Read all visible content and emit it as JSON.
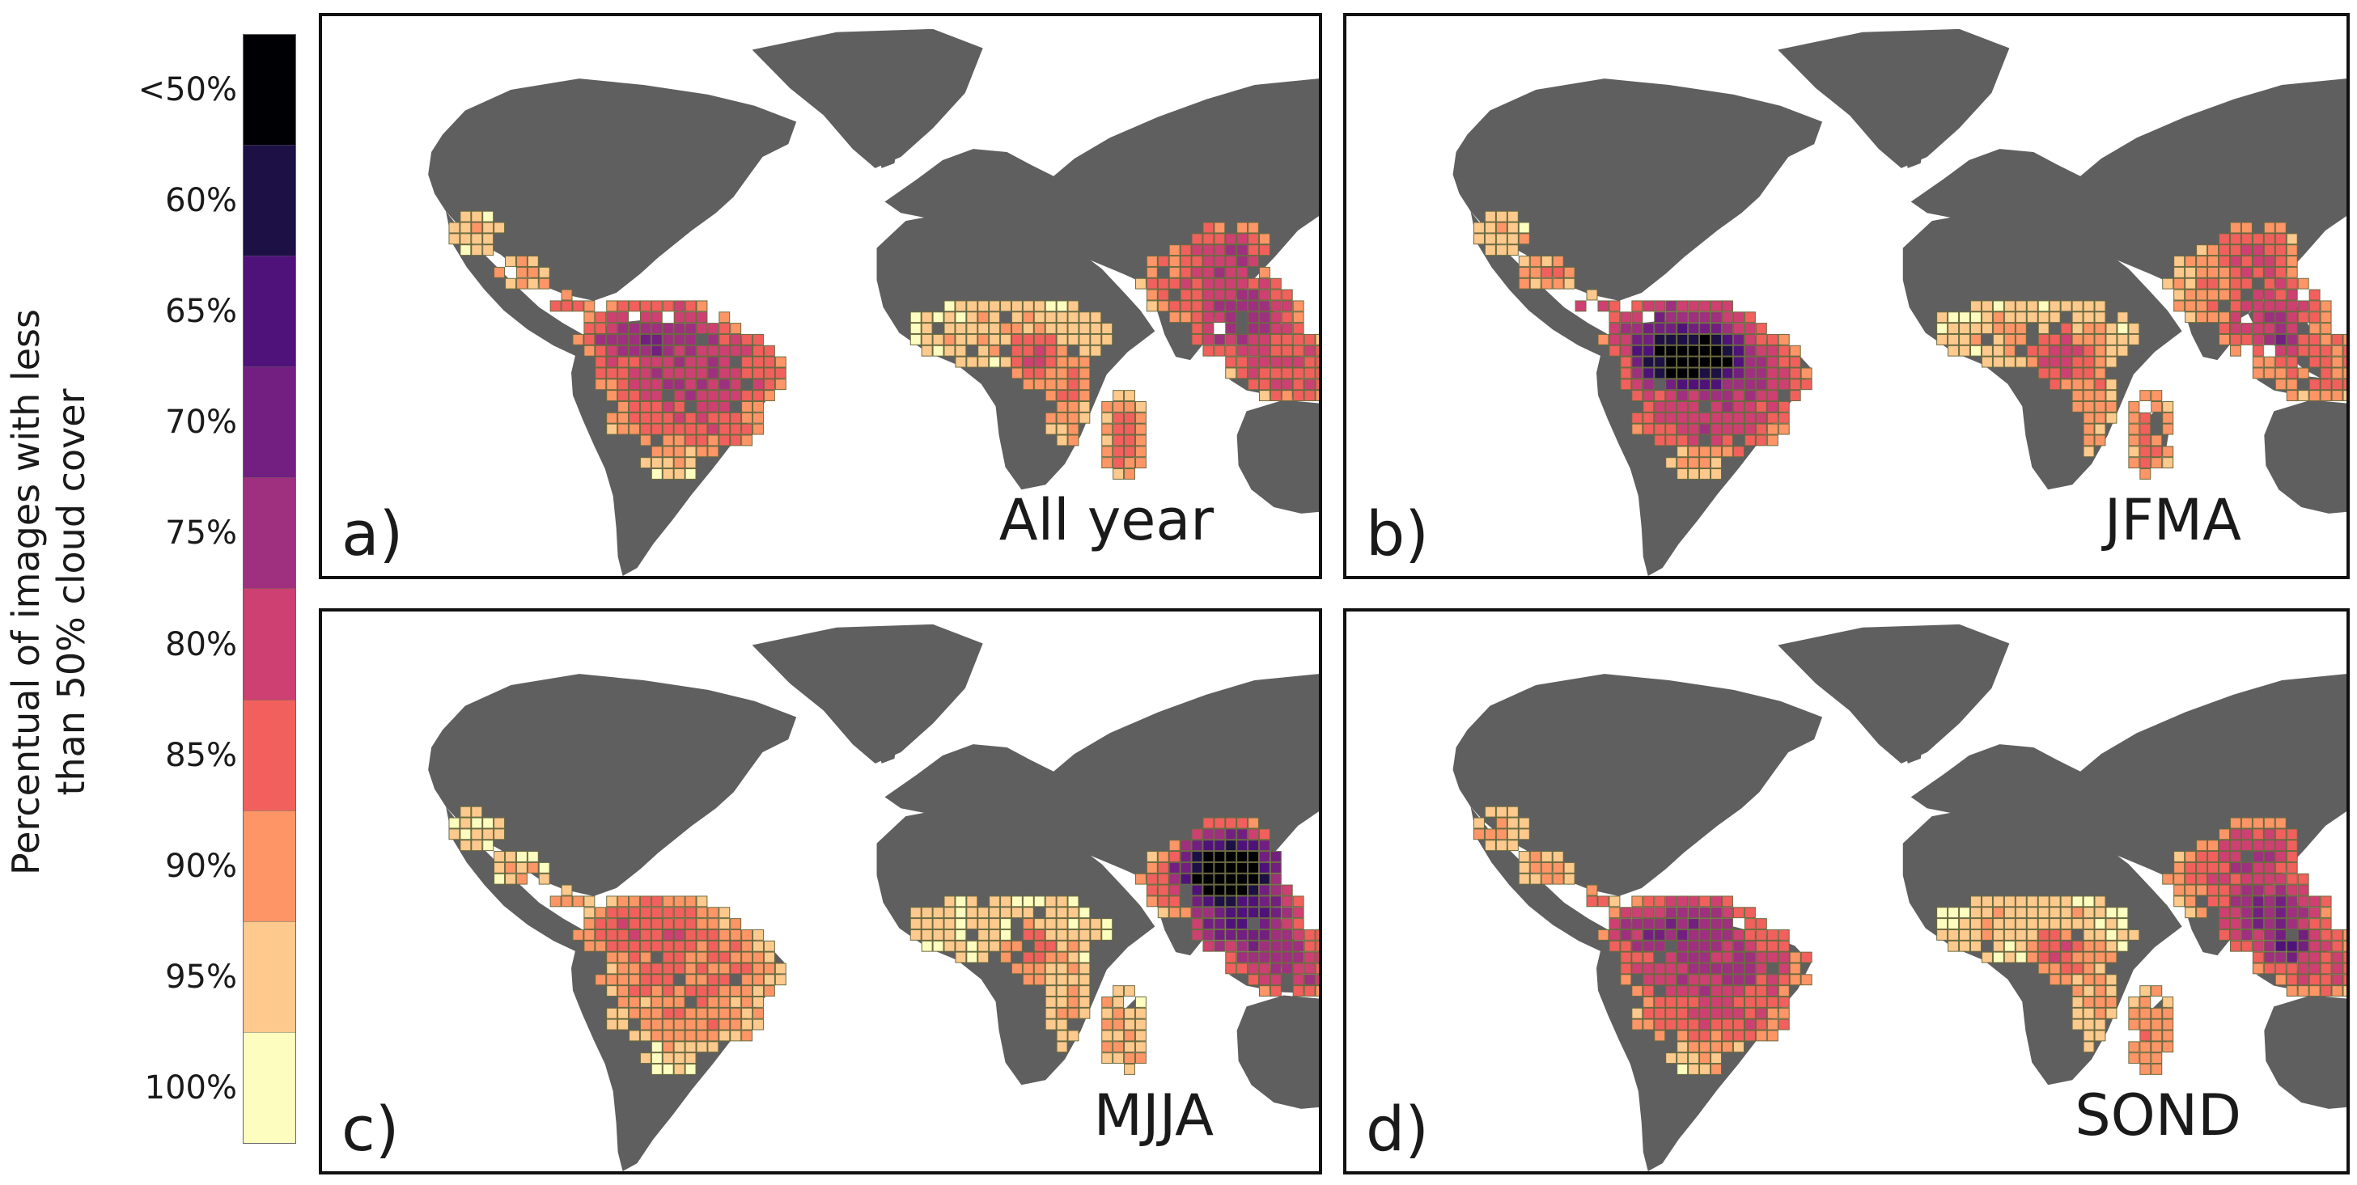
{
  "colorbar": {
    "axis_label_lines": [
      "Percentual of images with less",
      "than 50% cloud cover"
    ],
    "ticks": [
      "<50%",
      "60%",
      "65%",
      "70%",
      "75%",
      "80%",
      "85%",
      "90%",
      "95%",
      "100%"
    ],
    "colors": [
      "#000004",
      "#1c1044",
      "#4f127b",
      "#721f81",
      "#9f2f7f",
      "#cd4071",
      "#f1605d",
      "#fd9567",
      "#fec98d",
      "#fcfdbf"
    ]
  },
  "land_color": "#5f5f5f",
  "panels": [
    {
      "letter": "a)",
      "title": "All year"
    },
    {
      "letter": "b)",
      "title": "JFMA"
    },
    {
      "letter": "c)",
      "title": "MJJA"
    },
    {
      "letter": "d)",
      "title": "SOND"
    }
  ]
}
